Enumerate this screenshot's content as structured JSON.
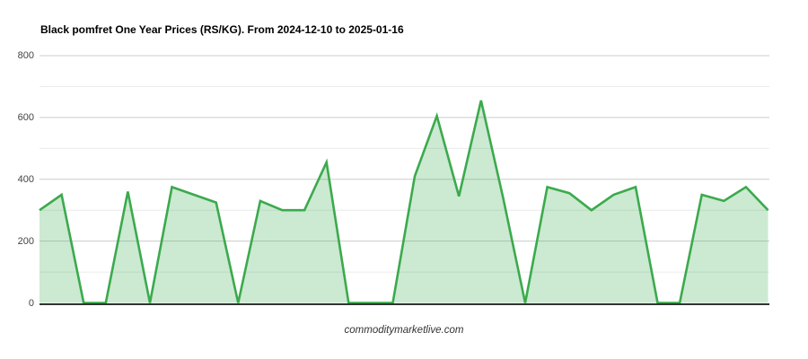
{
  "watermark": "commoditymarketlive.com",
  "colors": {
    "line": "#3baa4d",
    "fill": "rgba(59,170,77,0.26)",
    "axis_baseline": "#333333",
    "grid_major": "#cccccc",
    "grid_minor": "#ebebeb",
    "tick_label": "#444444",
    "title_text": "#000000"
  },
  "chart_data": {
    "type": "area",
    "title": "Black pomfret One Year Prices (RS/KG). From 2024-12-10 to 2025-01-16",
    "date_range": {
      "from": "2024-12-10",
      "to": "2025-01-16"
    },
    "ylabel": "",
    "xlabel": "",
    "ylim": [
      0,
      800
    ],
    "yticks": [
      0,
      200,
      400,
      600,
      800
    ],
    "minor_gridlines": [
      100,
      300,
      500,
      700
    ],
    "grid": true,
    "legend": "none",
    "x": [
      1,
      2,
      3,
      4,
      5,
      6,
      7,
      8,
      9,
      10,
      11,
      12,
      13,
      14,
      15,
      16,
      17,
      18,
      19,
      20,
      21,
      22,
      23,
      24,
      25,
      26,
      27,
      28,
      29,
      30,
      31,
      32,
      33,
      34
    ],
    "values": [
      300,
      350,
      0,
      0,
      360,
      0,
      375,
      350,
      325,
      0,
      330,
      300,
      300,
      455,
      0,
      0,
      0,
      410,
      605,
      345,
      655,
      340,
      0,
      375,
      355,
      300,
      350,
      375,
      0,
      0,
      350,
      330,
      375,
      300
    ]
  }
}
